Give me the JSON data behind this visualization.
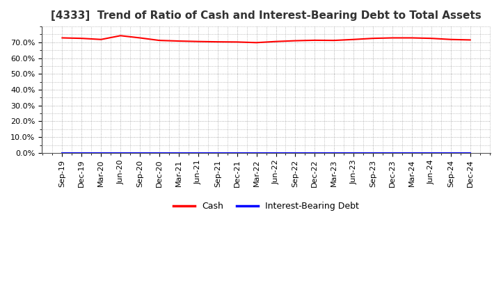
{
  "title": "[4333]  Trend of Ratio of Cash and Interest-Bearing Debt to Total Assets",
  "x_labels": [
    "Sep-19",
    "Dec-19",
    "Mar-20",
    "Jun-20",
    "Sep-20",
    "Dec-20",
    "Mar-21",
    "Jun-21",
    "Sep-21",
    "Dec-21",
    "Mar-22",
    "Jun-22",
    "Sep-22",
    "Dec-22",
    "Mar-23",
    "Jun-23",
    "Sep-23",
    "Dec-23",
    "Mar-24",
    "Jun-24",
    "Sep-24",
    "Dec-24"
  ],
  "cash_values": [
    72.8,
    72.5,
    71.8,
    74.2,
    72.8,
    71.2,
    70.8,
    70.5,
    70.3,
    70.2,
    69.8,
    70.5,
    71.0,
    71.3,
    71.2,
    71.8,
    72.5,
    72.8,
    72.8,
    72.5,
    71.8,
    71.5
  ],
  "debt_values": [
    0.0,
    0.0,
    0.0,
    0.0,
    0.0,
    0.0,
    0.0,
    0.0,
    0.0,
    0.0,
    0.0,
    0.0,
    0.0,
    0.0,
    0.0,
    0.0,
    0.0,
    0.0,
    0.0,
    0.0,
    0.0,
    0.0
  ],
  "cash_color": "#ff0000",
  "debt_color": "#0000ff",
  "ylim": [
    0,
    80
  ],
  "yticks": [
    0,
    10,
    20,
    30,
    40,
    50,
    60,
    70
  ],
  "ytick_labels": [
    "0.0%",
    "10.0%",
    "20.0%",
    "30.0%",
    "40.0%",
    "50.0%",
    "60.0%",
    "70.0%"
  ],
  "background_color": "#ffffff",
  "plot_bg_color": "#ffffff",
  "grid_color": "#999999",
  "title_fontsize": 11,
  "tick_fontsize": 8,
  "legend_items": [
    "Cash",
    "Interest-Bearing Debt"
  ],
  "legend_colors": [
    "#ff0000",
    "#0000ff"
  ]
}
